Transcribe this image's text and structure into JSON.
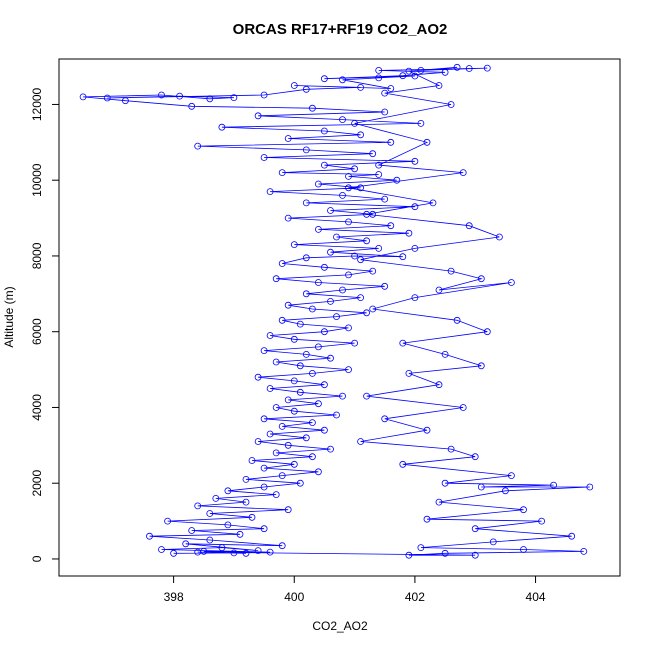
{
  "chart_data": {
    "type": "scatter",
    "title": "ORCAS RF17+RF19 CO2_AO2",
    "xlabel": "CO2_AO2",
    "ylabel": "Altitude (m)",
    "xlim": [
      396.1,
      405.4
    ],
    "ylim": [
      -450,
      13200
    ],
    "x_ticks": [
      398,
      400,
      402,
      404
    ],
    "y_ticks": [
      0,
      2000,
      4000,
      6000,
      8000,
      10000,
      12000
    ],
    "grid": false,
    "legend": "none",
    "marker": "open-circle",
    "connected": true,
    "series": [
      {
        "color": "#0000ff",
        "points": [
          [
            398.0,
            150
          ],
          [
            399.0,
            160
          ],
          [
            398.5,
            200
          ],
          [
            399.6,
            180
          ],
          [
            397.8,
            250
          ],
          [
            398.8,
            300
          ],
          [
            399.4,
            220
          ],
          [
            398.2,
            400
          ],
          [
            399.8,
            350
          ],
          [
            398.6,
            500
          ],
          [
            397.6,
            600
          ],
          [
            399.1,
            650
          ],
          [
            398.3,
            750
          ],
          [
            399.5,
            800
          ],
          [
            398.9,
            900
          ],
          [
            397.9,
            1000
          ],
          [
            399.3,
            1100
          ],
          [
            398.6,
            1200
          ],
          [
            399.9,
            1300
          ],
          [
            398.4,
            1400
          ],
          [
            399.2,
            1500
          ],
          [
            398.7,
            1600
          ],
          [
            399.7,
            1700
          ],
          [
            398.9,
            1800
          ],
          [
            399.5,
            1900
          ],
          [
            400.1,
            2000
          ],
          [
            399.2,
            2100
          ],
          [
            399.8,
            2200
          ],
          [
            400.4,
            2300
          ],
          [
            399.5,
            2400
          ],
          [
            400.0,
            2500
          ],
          [
            399.3,
            2600
          ],
          [
            400.3,
            2700
          ],
          [
            399.7,
            2800
          ],
          [
            400.6,
            2900
          ],
          [
            399.9,
            3000
          ],
          [
            399.4,
            3100
          ],
          [
            400.2,
            3200
          ],
          [
            399.6,
            3300
          ],
          [
            400.5,
            3400
          ],
          [
            399.8,
            3500
          ],
          [
            400.3,
            3600
          ],
          [
            399.5,
            3700
          ],
          [
            400.7,
            3800
          ],
          [
            400.0,
            3900
          ],
          [
            399.7,
            4000
          ],
          [
            400.4,
            4100
          ],
          [
            399.9,
            4200
          ],
          [
            400.8,
            4300
          ],
          [
            400.1,
            4400
          ],
          [
            399.6,
            4500
          ],
          [
            400.5,
            4600
          ],
          [
            400.0,
            4700
          ],
          [
            399.4,
            4800
          ],
          [
            400.3,
            4900
          ],
          [
            400.9,
            5000
          ],
          [
            400.1,
            5100
          ],
          [
            399.7,
            5200
          ],
          [
            400.6,
            5300
          ],
          [
            400.2,
            5400
          ],
          [
            399.5,
            5500
          ],
          [
            400.4,
            5600
          ],
          [
            401.0,
            5700
          ],
          [
            400.0,
            5800
          ],
          [
            399.6,
            5900
          ],
          [
            400.5,
            6000
          ],
          [
            400.9,
            6100
          ],
          [
            400.1,
            6200
          ],
          [
            399.8,
            6300
          ],
          [
            400.7,
            6400
          ],
          [
            401.2,
            6500
          ],
          [
            400.3,
            6600
          ],
          [
            399.9,
            6700
          ],
          [
            400.6,
            6800
          ],
          [
            401.1,
            6900
          ],
          [
            400.2,
            7000
          ],
          [
            400.8,
            7100
          ],
          [
            401.5,
            7200
          ],
          [
            400.4,
            7300
          ],
          [
            399.7,
            7400
          ],
          [
            400.9,
            7500
          ],
          [
            401.3,
            7600
          ],
          [
            400.5,
            7700
          ],
          [
            399.8,
            7800
          ],
          [
            400.2,
            7950
          ],
          [
            401.0,
            8000
          ],
          [
            401.8,
            7980
          ],
          [
            400.6,
            8100
          ],
          [
            401.4,
            8200
          ],
          [
            400.0,
            8300
          ],
          [
            401.2,
            8400
          ],
          [
            400.7,
            8500
          ],
          [
            401.9,
            8600
          ],
          [
            400.4,
            8700
          ],
          [
            401.6,
            8800
          ],
          [
            400.9,
            8900
          ],
          [
            399.9,
            9000
          ],
          [
            401.3,
            9100
          ],
          [
            400.6,
            9200
          ],
          [
            402.0,
            9300
          ],
          [
            400.2,
            9400
          ],
          [
            401.5,
            9500
          ],
          [
            400.8,
            9600
          ],
          [
            399.6,
            9700
          ],
          [
            401.1,
            9800
          ],
          [
            400.4,
            9900
          ],
          [
            401.7,
            10000
          ],
          [
            400.9,
            10100
          ],
          [
            401.4,
            10150
          ],
          [
            399.8,
            10200
          ],
          [
            401.0,
            10300
          ],
          [
            400.5,
            10400
          ],
          [
            402.0,
            10500
          ],
          [
            399.5,
            10600
          ],
          [
            401.3,
            10700
          ],
          [
            400.2,
            10800
          ],
          [
            398.4,
            10900
          ],
          [
            401.6,
            11000
          ],
          [
            399.9,
            11100
          ],
          [
            401.1,
            11200
          ],
          [
            400.5,
            11300
          ],
          [
            398.8,
            11400
          ],
          [
            402.1,
            11500
          ],
          [
            400.8,
            11600
          ],
          [
            399.4,
            11700
          ],
          [
            401.5,
            11800
          ],
          [
            400.3,
            11900
          ],
          [
            398.3,
            11950
          ],
          [
            397.2,
            12100
          ],
          [
            396.5,
            12200
          ],
          [
            397.8,
            12250
          ],
          [
            398.6,
            12150
          ],
          [
            399.0,
            12180
          ],
          [
            398.1,
            12220
          ],
          [
            396.9,
            12170
          ],
          [
            399.5,
            12250
          ],
          [
            400.2,
            12400
          ],
          [
            401.1,
            12450
          ],
          [
            400.0,
            12500
          ],
          [
            401.6,
            12420
          ],
          [
            400.8,
            12650
          ],
          [
            401.4,
            12700
          ],
          [
            402.0,
            12750
          ],
          [
            400.5,
            12680
          ],
          [
            401.8,
            12760
          ],
          [
            402.5,
            12850
          ],
          [
            401.4,
            12900
          ],
          [
            402.9,
            12950
          ],
          [
            403.2,
            12960
          ],
          [
            402.1,
            12900
          ],
          [
            402.7,
            12980
          ],
          [
            401.9,
            12880
          ],
          [
            402.4,
            12500
          ],
          [
            401.5,
            12300
          ],
          [
            402.6,
            12000
          ],
          [
            401.0,
            11500
          ],
          [
            402.2,
            11000
          ],
          [
            401.4,
            10400
          ],
          [
            402.8,
            10200
          ],
          [
            400.9,
            9800
          ],
          [
            402.3,
            9400
          ],
          [
            401.2,
            9100
          ],
          [
            402.9,
            8800
          ],
          [
            403.4,
            8500
          ],
          [
            402.0,
            8200
          ],
          [
            401.1,
            7900
          ],
          [
            402.6,
            7600
          ],
          [
            403.1,
            7400
          ],
          [
            402.4,
            7100
          ],
          [
            403.6,
            7300
          ],
          [
            402.0,
            6900
          ],
          [
            401.3,
            6600
          ],
          [
            402.7,
            6300
          ],
          [
            403.2,
            6000
          ],
          [
            401.8,
            5700
          ],
          [
            402.5,
            5400
          ],
          [
            403.1,
            5100
          ],
          [
            401.9,
            4900
          ],
          [
            402.4,
            4600
          ],
          [
            401.2,
            4300
          ],
          [
            402.8,
            4000
          ],
          [
            401.5,
            3700
          ],
          [
            402.2,
            3400
          ],
          [
            401.1,
            3100
          ],
          [
            402.6,
            2900
          ],
          [
            403.0,
            2700
          ],
          [
            401.8,
            2500
          ],
          [
            403.6,
            2200
          ],
          [
            402.5,
            2000
          ],
          [
            404.3,
            1950
          ],
          [
            403.1,
            1900
          ],
          [
            404.9,
            1900
          ],
          [
            403.5,
            1800
          ],
          [
            402.4,
            1500
          ],
          [
            403.8,
            1300
          ],
          [
            402.2,
            1050
          ],
          [
            404.1,
            1000
          ],
          [
            403.0,
            800
          ],
          [
            404.6,
            600
          ],
          [
            403.3,
            450
          ],
          [
            402.1,
            300
          ],
          [
            403.8,
            250
          ],
          [
            404.8,
            200
          ],
          [
            402.5,
            150
          ],
          [
            401.9,
            100
          ],
          [
            403.0,
            100
          ],
          [
            398.4,
            180
          ],
          [
            399.2,
            150
          ]
        ]
      }
    ]
  }
}
